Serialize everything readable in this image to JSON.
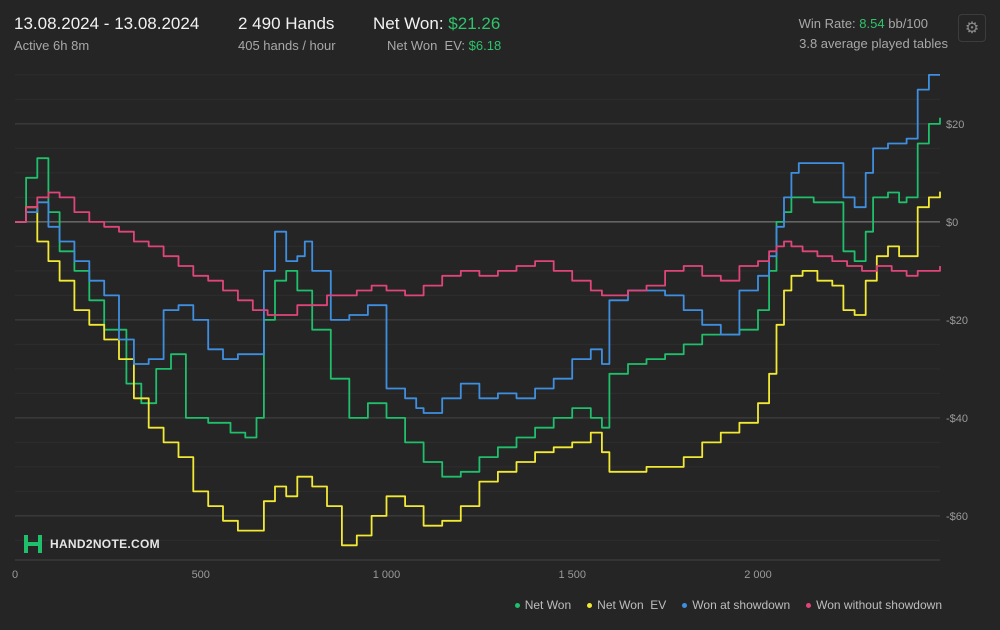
{
  "header": {
    "date_range": "13.08.2024 - 13.08.2024",
    "active_time": "Active 6h 8m",
    "hands": "2 490 Hands",
    "hands_per_hour": "405 hands / hour",
    "net_won_label": "Net Won:",
    "net_won_value": "$21.26",
    "net_won_ev_label": "Net Won  EV:",
    "net_won_ev_value": "$6.18",
    "win_rate_label": "Win Rate:",
    "win_rate_value": "8.54",
    "win_rate_unit": "bb/100",
    "tables": "3.8 average played tables"
  },
  "logo": "HAND2NOTE.COM",
  "colors": {
    "net_won": "#1fbf6b",
    "net_won_ev": "#f2e935",
    "showdown": "#3f8fe0",
    "non_showdown": "#e0457a",
    "accent": "#2fc36b"
  },
  "chart_data": {
    "type": "line",
    "xlabel": "",
    "ylabel": "",
    "xlim": [
      0,
      2490
    ],
    "ylim": [
      -69,
      31
    ],
    "x_ticks": [
      0,
      500,
      1000,
      1500,
      2000
    ],
    "x_tick_labels": [
      "0",
      "500",
      "1 000",
      "1 500",
      "2 000"
    ],
    "y_ticks": [
      20,
      0,
      -20,
      -40,
      -60
    ],
    "y_tick_labels": [
      "$20",
      "$0",
      "-$20",
      "-$40",
      "-$60"
    ],
    "grid": true,
    "legend_position": "bottom-right",
    "series": [
      {
        "name": "Net Won",
        "color": "#1fbf6b",
        "points": [
          [
            0,
            0
          ],
          [
            30,
            9
          ],
          [
            60,
            13
          ],
          [
            90,
            2
          ],
          [
            120,
            -6
          ],
          [
            160,
            -10
          ],
          [
            200,
            -16
          ],
          [
            240,
            -22
          ],
          [
            300,
            -33
          ],
          [
            340,
            -37
          ],
          [
            380,
            -30
          ],
          [
            420,
            -27
          ],
          [
            460,
            -40
          ],
          [
            520,
            -41
          ],
          [
            580,
            -43
          ],
          [
            620,
            -44
          ],
          [
            650,
            -40
          ],
          [
            670,
            -20
          ],
          [
            700,
            -12
          ],
          [
            730,
            -10
          ],
          [
            760,
            -14
          ],
          [
            800,
            -22
          ],
          [
            850,
            -32
          ],
          [
            900,
            -40
          ],
          [
            950,
            -37
          ],
          [
            1000,
            -40
          ],
          [
            1050,
            -45
          ],
          [
            1100,
            -49
          ],
          [
            1150,
            -52
          ],
          [
            1200,
            -51
          ],
          [
            1250,
            -48
          ],
          [
            1300,
            -46
          ],
          [
            1350,
            -44
          ],
          [
            1400,
            -42
          ],
          [
            1450,
            -40
          ],
          [
            1500,
            -38
          ],
          [
            1550,
            -40
          ],
          [
            1580,
            -42
          ],
          [
            1600,
            -31
          ],
          [
            1650,
            -29
          ],
          [
            1700,
            -28
          ],
          [
            1750,
            -27
          ],
          [
            1800,
            -25
          ],
          [
            1850,
            -23
          ],
          [
            1900,
            -23
          ],
          [
            1950,
            -22
          ],
          [
            2000,
            -18
          ],
          [
            2030,
            -10
          ],
          [
            2050,
            0
          ],
          [
            2070,
            2
          ],
          [
            2090,
            5
          ],
          [
            2110,
            5
          ],
          [
            2150,
            4
          ],
          [
            2200,
            4
          ],
          [
            2230,
            -6
          ],
          [
            2260,
            -8
          ],
          [
            2290,
            -2
          ],
          [
            2310,
            5
          ],
          [
            2350,
            6
          ],
          [
            2380,
            4
          ],
          [
            2400,
            5
          ],
          [
            2430,
            16
          ],
          [
            2460,
            20
          ],
          [
            2490,
            21.26
          ]
        ]
      },
      {
        "name": "Net Won  EV",
        "color": "#f2e935",
        "points": [
          [
            0,
            0
          ],
          [
            30,
            3
          ],
          [
            60,
            -4
          ],
          [
            90,
            -8
          ],
          [
            120,
            -12
          ],
          [
            160,
            -18
          ],
          [
            200,
            -21
          ],
          [
            240,
            -24
          ],
          [
            280,
            -28
          ],
          [
            320,
            -36
          ],
          [
            360,
            -42
          ],
          [
            400,
            -45
          ],
          [
            440,
            -48
          ],
          [
            480,
            -55
          ],
          [
            520,
            -58
          ],
          [
            560,
            -61
          ],
          [
            600,
            -63
          ],
          [
            640,
            -63
          ],
          [
            670,
            -57
          ],
          [
            700,
            -54
          ],
          [
            730,
            -56
          ],
          [
            760,
            -52
          ],
          [
            800,
            -54
          ],
          [
            840,
            -58
          ],
          [
            880,
            -66
          ],
          [
            920,
            -64
          ],
          [
            960,
            -60
          ],
          [
            1000,
            -56
          ],
          [
            1050,
            -58
          ],
          [
            1100,
            -62
          ],
          [
            1150,
            -61
          ],
          [
            1200,
            -58
          ],
          [
            1250,
            -53
          ],
          [
            1300,
            -51
          ],
          [
            1350,
            -49
          ],
          [
            1400,
            -47
          ],
          [
            1450,
            -46
          ],
          [
            1500,
            -45
          ],
          [
            1550,
            -43
          ],
          [
            1580,
            -47
          ],
          [
            1600,
            -51
          ],
          [
            1650,
            -51
          ],
          [
            1700,
            -50
          ],
          [
            1750,
            -50
          ],
          [
            1800,
            -48
          ],
          [
            1850,
            -45
          ],
          [
            1900,
            -43
          ],
          [
            1950,
            -41
          ],
          [
            2000,
            -37
          ],
          [
            2030,
            -31
          ],
          [
            2050,
            -21
          ],
          [
            2070,
            -14
          ],
          [
            2090,
            -11
          ],
          [
            2120,
            -10
          ],
          [
            2160,
            -12
          ],
          [
            2200,
            -13
          ],
          [
            2230,
            -18
          ],
          [
            2260,
            -19
          ],
          [
            2290,
            -12
          ],
          [
            2320,
            -7
          ],
          [
            2350,
            -5
          ],
          [
            2380,
            -7
          ],
          [
            2400,
            -7
          ],
          [
            2430,
            3
          ],
          [
            2460,
            5
          ],
          [
            2490,
            6.18
          ]
        ]
      },
      {
        "name": "Won at showdown",
        "color": "#3f8fe0",
        "points": [
          [
            0,
            0
          ],
          [
            30,
            2
          ],
          [
            60,
            4
          ],
          [
            90,
            -1
          ],
          [
            120,
            -4
          ],
          [
            160,
            -8
          ],
          [
            200,
            -12
          ],
          [
            240,
            -15
          ],
          [
            280,
            -24
          ],
          [
            320,
            -29
          ],
          [
            360,
            -28
          ],
          [
            400,
            -18
          ],
          [
            440,
            -17
          ],
          [
            480,
            -20
          ],
          [
            520,
            -26
          ],
          [
            560,
            -28
          ],
          [
            600,
            -27
          ],
          [
            640,
            -27
          ],
          [
            670,
            -10
          ],
          [
            700,
            -2
          ],
          [
            730,
            -8
          ],
          [
            760,
            -7
          ],
          [
            780,
            -4
          ],
          [
            800,
            -10
          ],
          [
            850,
            -20
          ],
          [
            900,
            -19
          ],
          [
            950,
            -17
          ],
          [
            1000,
            -34
          ],
          [
            1050,
            -36
          ],
          [
            1080,
            -38
          ],
          [
            1100,
            -39
          ],
          [
            1150,
            -36
          ],
          [
            1200,
            -33
          ],
          [
            1250,
            -36
          ],
          [
            1300,
            -35
          ],
          [
            1350,
            -36
          ],
          [
            1400,
            -34
          ],
          [
            1450,
            -32
          ],
          [
            1500,
            -28
          ],
          [
            1550,
            -26
          ],
          [
            1580,
            -29
          ],
          [
            1600,
            -16
          ],
          [
            1650,
            -14
          ],
          [
            1700,
            -14
          ],
          [
            1750,
            -15
          ],
          [
            1800,
            -18
          ],
          [
            1850,
            -21
          ],
          [
            1900,
            -23
          ],
          [
            1950,
            -14
          ],
          [
            2000,
            -11
          ],
          [
            2030,
            -7
          ],
          [
            2050,
            -1
          ],
          [
            2070,
            5
          ],
          [
            2090,
            10
          ],
          [
            2110,
            12
          ],
          [
            2150,
            12
          ],
          [
            2200,
            12
          ],
          [
            2230,
            5
          ],
          [
            2260,
            3
          ],
          [
            2290,
            10
          ],
          [
            2310,
            15
          ],
          [
            2350,
            16
          ],
          [
            2380,
            16
          ],
          [
            2400,
            17
          ],
          [
            2430,
            27
          ],
          [
            2460,
            30
          ],
          [
            2490,
            30
          ]
        ]
      },
      {
        "name": "Won without showdown",
        "color": "#e0457a",
        "points": [
          [
            0,
            0
          ],
          [
            30,
            3
          ],
          [
            60,
            5
          ],
          [
            90,
            6
          ],
          [
            120,
            5
          ],
          [
            160,
            2
          ],
          [
            200,
            0
          ],
          [
            240,
            -1
          ],
          [
            280,
            -2
          ],
          [
            320,
            -4
          ],
          [
            360,
            -5
          ],
          [
            400,
            -7
          ],
          [
            440,
            -9
          ],
          [
            480,
            -11
          ],
          [
            520,
            -12
          ],
          [
            560,
            -14
          ],
          [
            600,
            -16
          ],
          [
            640,
            -18
          ],
          [
            680,
            -19
          ],
          [
            720,
            -19
          ],
          [
            760,
            -17
          ],
          [
            800,
            -17
          ],
          [
            840,
            -15
          ],
          [
            880,
            -15
          ],
          [
            920,
            -14
          ],
          [
            960,
            -13
          ],
          [
            1000,
            -14
          ],
          [
            1050,
            -15
          ],
          [
            1100,
            -13
          ],
          [
            1150,
            -11
          ],
          [
            1200,
            -10
          ],
          [
            1250,
            -11
          ],
          [
            1300,
            -10
          ],
          [
            1350,
            -9
          ],
          [
            1400,
            -8
          ],
          [
            1450,
            -10
          ],
          [
            1500,
            -12
          ],
          [
            1550,
            -14
          ],
          [
            1580,
            -15
          ],
          [
            1600,
            -15
          ],
          [
            1650,
            -14
          ],
          [
            1700,
            -13
          ],
          [
            1750,
            -10
          ],
          [
            1800,
            -9
          ],
          [
            1850,
            -11
          ],
          [
            1900,
            -12
          ],
          [
            1950,
            -9
          ],
          [
            2000,
            -8
          ],
          [
            2030,
            -6
          ],
          [
            2050,
            -5
          ],
          [
            2070,
            -4
          ],
          [
            2090,
            -5
          ],
          [
            2120,
            -6
          ],
          [
            2160,
            -7
          ],
          [
            2200,
            -8
          ],
          [
            2240,
            -9
          ],
          [
            2280,
            -10
          ],
          [
            2320,
            -9
          ],
          [
            2360,
            -10
          ],
          [
            2400,
            -11
          ],
          [
            2430,
            -10
          ],
          [
            2460,
            -10
          ],
          [
            2490,
            -9
          ]
        ]
      }
    ]
  }
}
